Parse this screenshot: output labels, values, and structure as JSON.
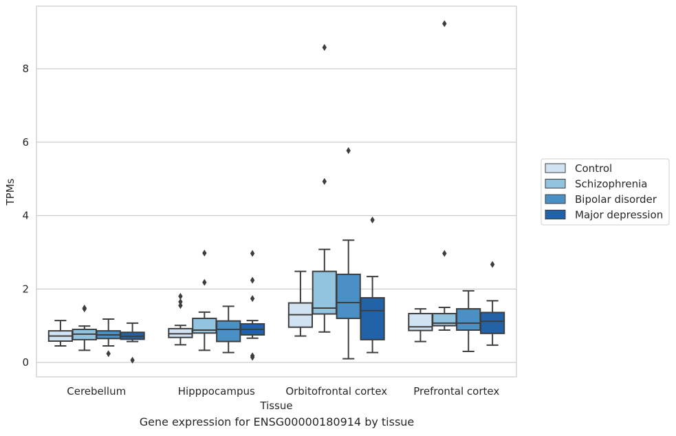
{
  "caption": "Gene expression for ENSG00000180914 by tissue",
  "chart_data": {
    "type": "box",
    "xlabel": "Tissue",
    "ylabel": "TPMs",
    "ylim": [
      -0.38,
      9.85
    ],
    "yticks": [
      0,
      2,
      4,
      6,
      8
    ],
    "grid": "horizontal",
    "legend_position": "right",
    "categories": [
      "Cerebellum",
      "Hipppocampus",
      "Orbitofrontal cortex",
      "Prefrontal cortex"
    ],
    "colors": [
      "#d1e2f2",
      "#93c4df",
      "#4a90c4",
      "#2162a9"
    ],
    "series": [
      {
        "name": "Control",
        "boxes": [
          {
            "whislo": 0.45,
            "q1": 0.58,
            "med": 0.72,
            "q3": 0.86,
            "whishi": 1.14,
            "fliers": []
          },
          {
            "whislo": 0.48,
            "q1": 0.68,
            "med": 0.78,
            "q3": 0.92,
            "whishi": 1.01,
            "fliers": [
              1.55,
              1.65,
              1.8
            ]
          },
          {
            "whislo": 0.72,
            "q1": 0.96,
            "med": 1.3,
            "q3": 1.62,
            "whishi": 2.48,
            "fliers": []
          },
          {
            "whislo": 0.57,
            "q1": 0.87,
            "med": 0.97,
            "q3": 1.33,
            "whishi": 1.46,
            "fliers": []
          }
        ]
      },
      {
        "name": "Schizophrenia",
        "boxes": [
          {
            "whislo": 0.33,
            "q1": 0.62,
            "med": 0.77,
            "q3": 0.9,
            "whishi": 0.99,
            "fliers": [
              1.46,
              1.48
            ]
          },
          {
            "whislo": 0.33,
            "q1": 0.8,
            "med": 0.88,
            "q3": 1.2,
            "whishi": 1.37,
            "fliers": [
              2.18,
              2.98
            ]
          },
          {
            "whislo": 0.83,
            "q1": 1.32,
            "med": 1.48,
            "q3": 2.48,
            "whishi": 3.08,
            "fliers": [
              4.93,
              8.58
            ]
          },
          {
            "whislo": 0.88,
            "q1": 1.0,
            "med": 1.07,
            "q3": 1.33,
            "whishi": 1.5,
            "fliers": [
              2.97,
              9.23
            ]
          }
        ]
      },
      {
        "name": "Bipolar disorder",
        "boxes": [
          {
            "whislo": 0.45,
            "q1": 0.65,
            "med": 0.75,
            "q3": 0.86,
            "whishi": 1.18,
            "fliers": [
              0.24
            ]
          },
          {
            "whislo": 0.27,
            "q1": 0.57,
            "med": 0.9,
            "q3": 1.13,
            "whishi": 1.53,
            "fliers": []
          },
          {
            "whislo": 0.1,
            "q1": 1.2,
            "med": 1.63,
            "q3": 2.4,
            "whishi": 3.33,
            "fliers": [
              5.77
            ]
          },
          {
            "whislo": 0.3,
            "q1": 0.88,
            "med": 1.07,
            "q3": 1.46,
            "whishi": 1.95,
            "fliers": []
          }
        ]
      },
      {
        "name": "Major depression",
        "boxes": [
          {
            "whislo": 0.57,
            "q1": 0.63,
            "med": 0.71,
            "q3": 0.82,
            "whishi": 1.07,
            "fliers": [
              0.06
            ]
          },
          {
            "whislo": 0.66,
            "q1": 0.75,
            "med": 0.9,
            "q3": 1.05,
            "whishi": 1.14,
            "fliers": [
              0.14,
              0.18,
              1.74,
              2.24,
              2.97
            ]
          },
          {
            "whislo": 0.27,
            "q1": 0.62,
            "med": 1.41,
            "q3": 1.76,
            "whishi": 2.34,
            "fliers": [
              3.88
            ]
          },
          {
            "whislo": 0.47,
            "q1": 0.79,
            "med": 1.12,
            "q3": 1.36,
            "whishi": 1.68,
            "fliers": [
              2.67
            ]
          }
        ]
      }
    ]
  }
}
